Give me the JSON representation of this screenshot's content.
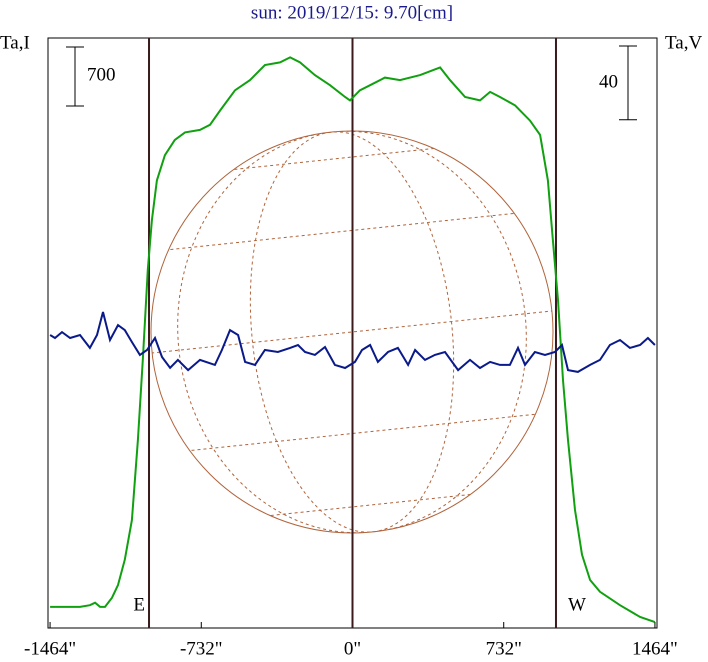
{
  "chart_data": {
    "type": "line",
    "title": "sun: 2019/12/15: 9.70[cm]",
    "ylabel": "Ta,I",
    "y2label": "Ta,V",
    "y_scale_bar": 700,
    "y2_scale_bar": 40,
    "xlim": [
      -1474,
      1474
    ],
    "xticks": [
      {
        "value": -1464,
        "label": "-1464\""
      },
      {
        "value": -732,
        "label": "-732\""
      },
      {
        "value": 0,
        "label": "0\""
      },
      {
        "value": 732,
        "label": "732\""
      },
      {
        "value": 1464,
        "label": "1464\""
      }
    ],
    "ylim": [
      0,
      7000
    ],
    "y2lim": [
      -160,
      160
    ],
    "vlines": [
      -985,
      0,
      985
    ],
    "limb_labels": [
      "E",
      "W"
    ],
    "series": [
      {
        "name": "I",
        "color": "#10a010",
        "x": [
          -1464,
          -1319,
          -1271,
          -1246,
          -1222,
          -1198,
          -1164,
          -1135,
          -1102,
          -1068,
          -1039,
          -1015,
          -991,
          -971,
          -947,
          -908,
          -860,
          -811,
          -738,
          -690,
          -641,
          -569,
          -496,
          -424,
          -351,
          -302,
          -254,
          -182,
          -109,
          -36,
          -12,
          36,
          85,
          157,
          230,
          327,
          424,
          472,
          545,
          617,
          666,
          714,
          787,
          859,
          908,
          946,
          970,
          995,
          1019,
          1043,
          1077,
          1111,
          1150,
          1198,
          1295,
          1392,
          1464
        ],
        "values": [
          250,
          250,
          270,
          300,
          250,
          250,
          360,
          510,
          810,
          1280,
          2230,
          3180,
          4250,
          4840,
          5310,
          5610,
          5790,
          5880,
          5910,
          5970,
          6140,
          6380,
          6500,
          6680,
          6710,
          6770,
          6710,
          6560,
          6440,
          6300,
          6260,
          6380,
          6440,
          6530,
          6500,
          6560,
          6650,
          6500,
          6300,
          6260,
          6360,
          6300,
          6200,
          6020,
          5850,
          5310,
          4600,
          3890,
          2940,
          2230,
          1400,
          870,
          570,
          430,
          270,
          130,
          70
        ]
      },
      {
        "name": "V",
        "color": "#0a1a8a",
        "axis": "y2",
        "x": [
          -1464,
          -1440,
          -1406,
          -1367,
          -1319,
          -1271,
          -1237,
          -1208,
          -1174,
          -1135,
          -1102,
          -1068,
          -1029,
          -995,
          -956,
          -922,
          -883,
          -845,
          -796,
          -738,
          -666,
          -632,
          -593,
          -554,
          -520,
          -472,
          -424,
          -361,
          -302,
          -264,
          -230,
          -182,
          -133,
          -85,
          -36,
          12,
          46,
          85,
          123,
          172,
          220,
          269,
          303,
          351,
          399,
          448,
          511,
          569,
          617,
          666,
          714,
          762,
          801,
          835,
          883,
          932,
          980,
          1014,
          1043,
          1091,
          1150,
          1198,
          1246,
          1295,
          1343,
          1392,
          1430,
          1464
        ],
        "values": [
          -1.1,
          -2.7,
          0.5,
          -2.7,
          -1.1,
          -8.1,
          -1.1,
          11.4,
          -3.8,
          4.3,
          1.6,
          -4.9,
          -11.9,
          -9.2,
          -2.7,
          -13,
          -18.9,
          -14.6,
          -20.1,
          -14.6,
          -17.3,
          -9.2,
          1.6,
          -1.1,
          -15.7,
          -17.3,
          -9.2,
          -10.3,
          -8.1,
          -6.5,
          -10.3,
          -11.9,
          -7.6,
          -17.3,
          -19,
          -15.7,
          -9.2,
          -6.5,
          -15.7,
          -10.3,
          -8.1,
          -17.3,
          -9.2,
          -14.6,
          -11.9,
          -10.3,
          -20.1,
          -14.6,
          -19,
          -15.7,
          -17.3,
          -17.3,
          -8.1,
          -17.3,
          -10.3,
          -11.9,
          -10.3,
          -6.5,
          -20.1,
          -21.1,
          -17.3,
          -14.6,
          -6.5,
          -3.8,
          -8.1,
          -6.5,
          -2.7,
          -6.5
        ]
      }
    ]
  }
}
